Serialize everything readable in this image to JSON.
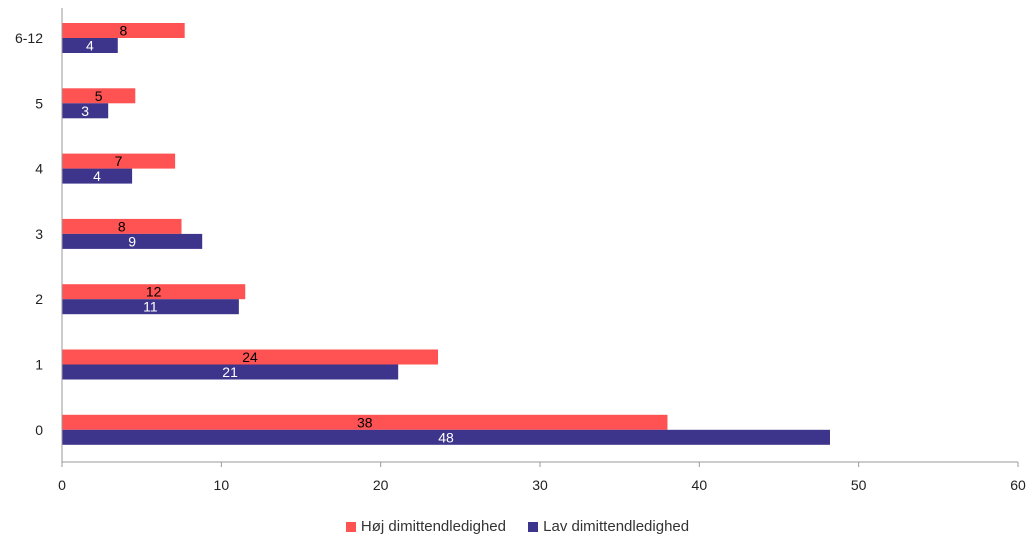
{
  "chart_data": {
    "type": "bar",
    "orientation": "horizontal",
    "categories": [
      "0",
      "1",
      "2",
      "3",
      "4",
      "5",
      "6-12"
    ],
    "series": [
      {
        "name": "Høj dimittendledighed",
        "color": "#ff5252",
        "label_color": "#000000",
        "values": [
          38,
          23.6,
          11.5,
          7.5,
          7.1,
          4.6,
          7.7
        ],
        "labels": [
          "38",
          "24",
          "12",
          "8",
          "7",
          "5",
          "8"
        ]
      },
      {
        "name": "Lav dimittendledighed",
        "color": "#3d348b",
        "label_color": "#ffffff",
        "values": [
          48.2,
          21.1,
          11.1,
          8.8,
          4.4,
          2.9,
          3.5
        ],
        "labels": [
          "48",
          "21",
          "11",
          "9",
          "4",
          "3",
          "4"
        ]
      }
    ],
    "xlim": [
      0,
      60
    ],
    "xticks": [
      "0",
      "10",
      "20",
      "30",
      "40",
      "50",
      "60"
    ],
    "title": "",
    "xlabel": "",
    "ylabel": "",
    "grid": false,
    "legend_position": "bottom"
  }
}
